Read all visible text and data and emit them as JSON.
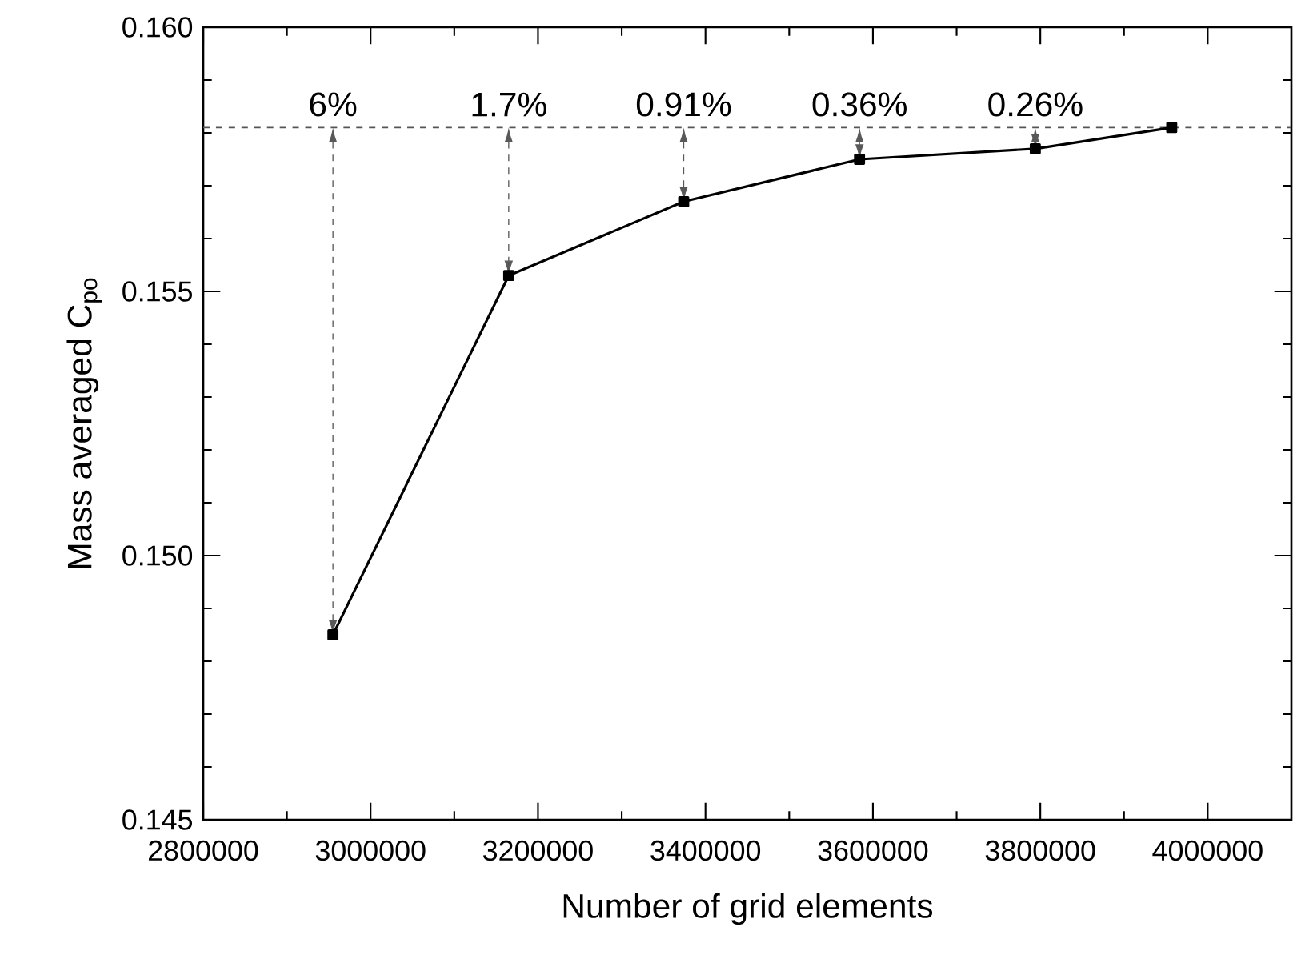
{
  "chart_data": {
    "type": "line",
    "xlabel": "Number of grid elements",
    "ylabel": "Mass averaged C$_{po}$",
    "x": [
      2955000,
      3165000,
      3374000,
      3584000,
      3794000,
      3957000
    ],
    "series": [
      {
        "color": "#000000",
        "values": [
          0.1485,
          0.1553,
          0.1567,
          0.1575,
          0.1577,
          0.1581
        ]
      }
    ],
    "marker": "square",
    "line_style": "solid",
    "xlim": [
      2800000,
      4100000
    ],
    "ylim": [
      0.145,
      0.16
    ],
    "xticks": [
      2800000,
      3000000,
      3200000,
      3400000,
      3600000,
      3800000,
      4000000
    ],
    "yticks": [
      {
        "value": 0.145,
        "label": "0.145"
      },
      {
        "value": 0.15,
        "label": "0.150"
      },
      {
        "value": 0.155,
        "label": "0.155"
      },
      {
        "value": 0.16,
        "label": "0.160"
      }
    ],
    "ref_lines": [
      {
        "axis": "y",
        "value": 0.1581,
        "color": "#555555",
        "line_style": "dashed"
      }
    ],
    "annotations": [
      {
        "text": "6%",
        "x": 2955000,
        "y": 0.1581
      },
      {
        "text": "1.7%",
        "x": 3165000,
        "y": 0.1581
      },
      {
        "text": "0.91%",
        "x": 3374000,
        "y": 0.1581
      },
      {
        "text": "0.36%",
        "x": 3584000,
        "y": 0.1581
      },
      {
        "text": "0.26%",
        "x": 3794000,
        "y": 0.1581
      }
    ]
  }
}
